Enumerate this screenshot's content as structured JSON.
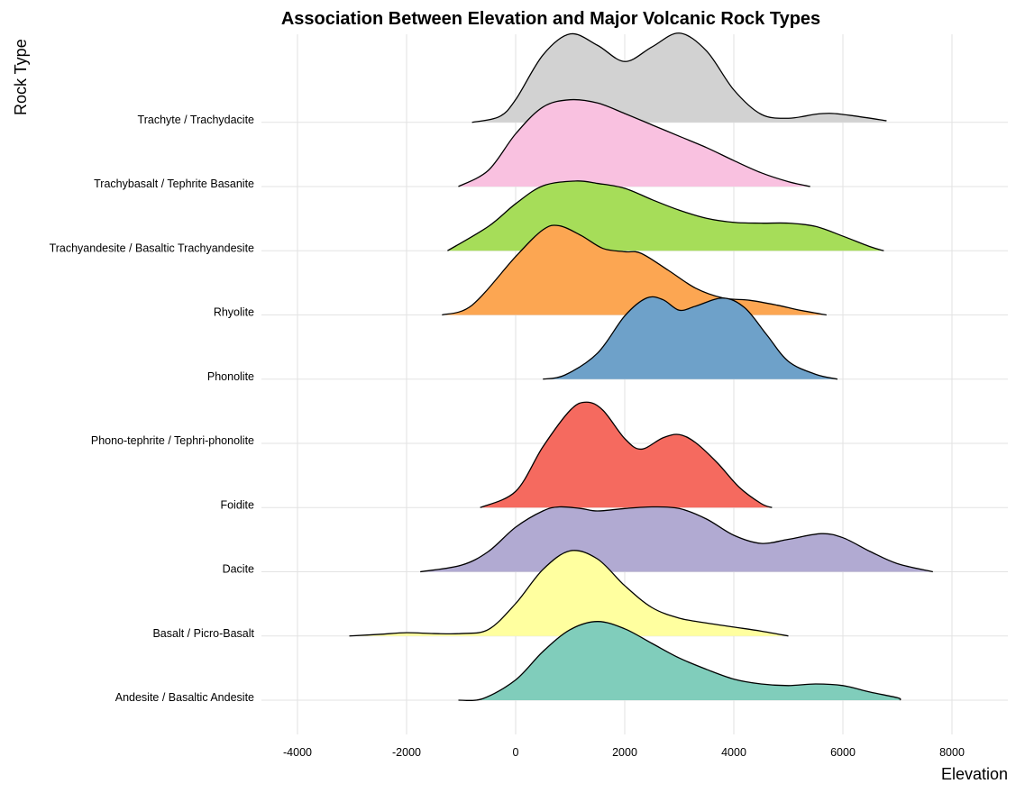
{
  "chart_data": {
    "type": "ridgeline",
    "title": "Association Between Elevation and Major Volcanic Rock Types",
    "xlabel": "Elevation",
    "ylabel": "Rock Type",
    "xlim": [
      -4800,
      9000
    ],
    "x_ticks": [
      -4000,
      -2000,
      0,
      2000,
      4000,
      6000,
      8000
    ],
    "x_tick_labels": [
      "-4000",
      "-2000",
      "0",
      "2000",
      "4000",
      "6000",
      "8000"
    ],
    "grid": true,
    "legend": "none",
    "series": [
      {
        "name": "Andesite / Basaltic Andesite",
        "color": "#80CDBB",
        "density": [
          [
            -1050,
            0
          ],
          [
            -600,
            0.02
          ],
          [
            0,
            0.25
          ],
          [
            500,
            0.6
          ],
          [
            1000,
            0.87
          ],
          [
            1500,
            0.97
          ],
          [
            2000,
            0.88
          ],
          [
            2500,
            0.7
          ],
          [
            3000,
            0.52
          ],
          [
            3500,
            0.38
          ],
          [
            4000,
            0.26
          ],
          [
            4500,
            0.2
          ],
          [
            5000,
            0.18
          ],
          [
            5500,
            0.2
          ],
          [
            6000,
            0.18
          ],
          [
            6500,
            0.1
          ],
          [
            7000,
            0.03
          ],
          [
            7050,
            0
          ]
        ]
      },
      {
        "name": "Basalt / Picro-Basalt",
        "color": "#FFFF9F",
        "density": [
          [
            -3050,
            0
          ],
          [
            -2500,
            0.02
          ],
          [
            -2000,
            0.04
          ],
          [
            -1500,
            0.03
          ],
          [
            -1000,
            0.03
          ],
          [
            -500,
            0.08
          ],
          [
            0,
            0.4
          ],
          [
            500,
            0.82
          ],
          [
            1000,
            1.05
          ],
          [
            1500,
            0.95
          ],
          [
            2000,
            0.62
          ],
          [
            2500,
            0.35
          ],
          [
            3000,
            0.22
          ],
          [
            3500,
            0.16
          ],
          [
            4000,
            0.11
          ],
          [
            4500,
            0.06
          ],
          [
            5000,
            0
          ]
        ]
      },
      {
        "name": "Dacite",
        "color": "#B1AAD2",
        "density": [
          [
            -1750,
            0
          ],
          [
            -1000,
            0.08
          ],
          [
            -500,
            0.25
          ],
          [
            0,
            0.55
          ],
          [
            500,
            0.75
          ],
          [
            800,
            0.8
          ],
          [
            1200,
            0.78
          ],
          [
            1500,
            0.75
          ],
          [
            2000,
            0.78
          ],
          [
            2500,
            0.8
          ],
          [
            3000,
            0.78
          ],
          [
            3500,
            0.65
          ],
          [
            4000,
            0.45
          ],
          [
            4500,
            0.35
          ],
          [
            5000,
            0.4
          ],
          [
            5600,
            0.47
          ],
          [
            6000,
            0.42
          ],
          [
            6500,
            0.25
          ],
          [
            7000,
            0.1
          ],
          [
            7650,
            0
          ]
        ]
      },
      {
        "name": "Foidite",
        "color": "#F56A5F",
        "density": [
          [
            -650,
            0
          ],
          [
            0,
            0.2
          ],
          [
            500,
            0.75
          ],
          [
            1000,
            1.2
          ],
          [
            1300,
            1.3
          ],
          [
            1600,
            1.2
          ],
          [
            2000,
            0.85
          ],
          [
            2300,
            0.72
          ],
          [
            2700,
            0.86
          ],
          [
            3000,
            0.9
          ],
          [
            3300,
            0.8
          ],
          [
            3700,
            0.55
          ],
          [
            4100,
            0.25
          ],
          [
            4500,
            0.05
          ],
          [
            4700,
            0
          ]
        ]
      },
      {
        "name": "Phono-tephrite /  Tephri-phonolite",
        "color": "#F56A5F",
        "density": []
      },
      {
        "name": "Phonolite",
        "color": "#6EA1C9",
        "density": [
          [
            500,
            0
          ],
          [
            900,
            0.05
          ],
          [
            1500,
            0.32
          ],
          [
            2000,
            0.78
          ],
          [
            2400,
            1.0
          ],
          [
            2700,
            0.98
          ],
          [
            3000,
            0.85
          ],
          [
            3300,
            0.9
          ],
          [
            3800,
            1.0
          ],
          [
            4200,
            0.88
          ],
          [
            4600,
            0.55
          ],
          [
            5000,
            0.22
          ],
          [
            5500,
            0.06
          ],
          [
            5900,
            0
          ]
        ]
      },
      {
        "name": "Rhyolite",
        "color": "#FCA652",
        "density": [
          [
            -1350,
            0
          ],
          [
            -800,
            0.12
          ],
          [
            0,
            0.72
          ],
          [
            500,
            1.05
          ],
          [
            800,
            1.1
          ],
          [
            1200,
            0.98
          ],
          [
            1600,
            0.82
          ],
          [
            2000,
            0.78
          ],
          [
            2300,
            0.76
          ],
          [
            2800,
            0.55
          ],
          [
            3300,
            0.33
          ],
          [
            3800,
            0.21
          ],
          [
            4300,
            0.18
          ],
          [
            4800,
            0.12
          ],
          [
            5200,
            0.06
          ],
          [
            5700,
            0
          ]
        ]
      },
      {
        "name": "Trachyandesite / Basaltic Trachyandesite",
        "color": "#A6DD59",
        "density": [
          [
            -1250,
            0
          ],
          [
            -500,
            0.3
          ],
          [
            0,
            0.58
          ],
          [
            500,
            0.8
          ],
          [
            1100,
            0.86
          ],
          [
            1500,
            0.83
          ],
          [
            2000,
            0.77
          ],
          [
            2500,
            0.63
          ],
          [
            3000,
            0.5
          ],
          [
            3500,
            0.4
          ],
          [
            4000,
            0.35
          ],
          [
            4500,
            0.34
          ],
          [
            5000,
            0.34
          ],
          [
            5500,
            0.3
          ],
          [
            6000,
            0.18
          ],
          [
            6500,
            0.05
          ],
          [
            6750,
            0
          ]
        ]
      },
      {
        "name": "Trachybasalt / Tephrite Basanite",
        "color": "#F9C1E0",
        "density": [
          [
            -1050,
            0
          ],
          [
            -500,
            0.2
          ],
          [
            0,
            0.65
          ],
          [
            500,
            0.98
          ],
          [
            1000,
            1.07
          ],
          [
            1500,
            1.03
          ],
          [
            2000,
            0.9
          ],
          [
            2500,
            0.76
          ],
          [
            3000,
            0.62
          ],
          [
            3500,
            0.48
          ],
          [
            4000,
            0.32
          ],
          [
            4500,
            0.17
          ],
          [
            5000,
            0.06
          ],
          [
            5400,
            0
          ]
        ]
      },
      {
        "name": "Trachyte / Trachydacite",
        "color": "#D2D2D2",
        "density": [
          [
            -800,
            0
          ],
          [
            -300,
            0.07
          ],
          [
            0,
            0.28
          ],
          [
            500,
            0.83
          ],
          [
            1000,
            1.09
          ],
          [
            1500,
            0.95
          ],
          [
            2000,
            0.75
          ],
          [
            2500,
            0.93
          ],
          [
            3000,
            1.1
          ],
          [
            3500,
            0.88
          ],
          [
            4000,
            0.4
          ],
          [
            4500,
            0.1
          ],
          [
            5000,
            0.05
          ],
          [
            5500,
            0.1
          ],
          [
            5800,
            0.11
          ],
          [
            6200,
            0.08
          ],
          [
            6800,
            0.02
          ]
        ]
      }
    ],
    "y_labels": [
      "Andesite / Basaltic Andesite",
      "Basalt / Picro-Basalt",
      "Dacite",
      "Foidite",
      "Phono-tephrite /  Tephri-phonolite",
      "Phonolite",
      "Rhyolite",
      "Trachyandesite / Basaltic Trachyandesite",
      "Trachybasalt / Tephrite Basanite",
      "Trachyte / Trachydacite"
    ]
  }
}
